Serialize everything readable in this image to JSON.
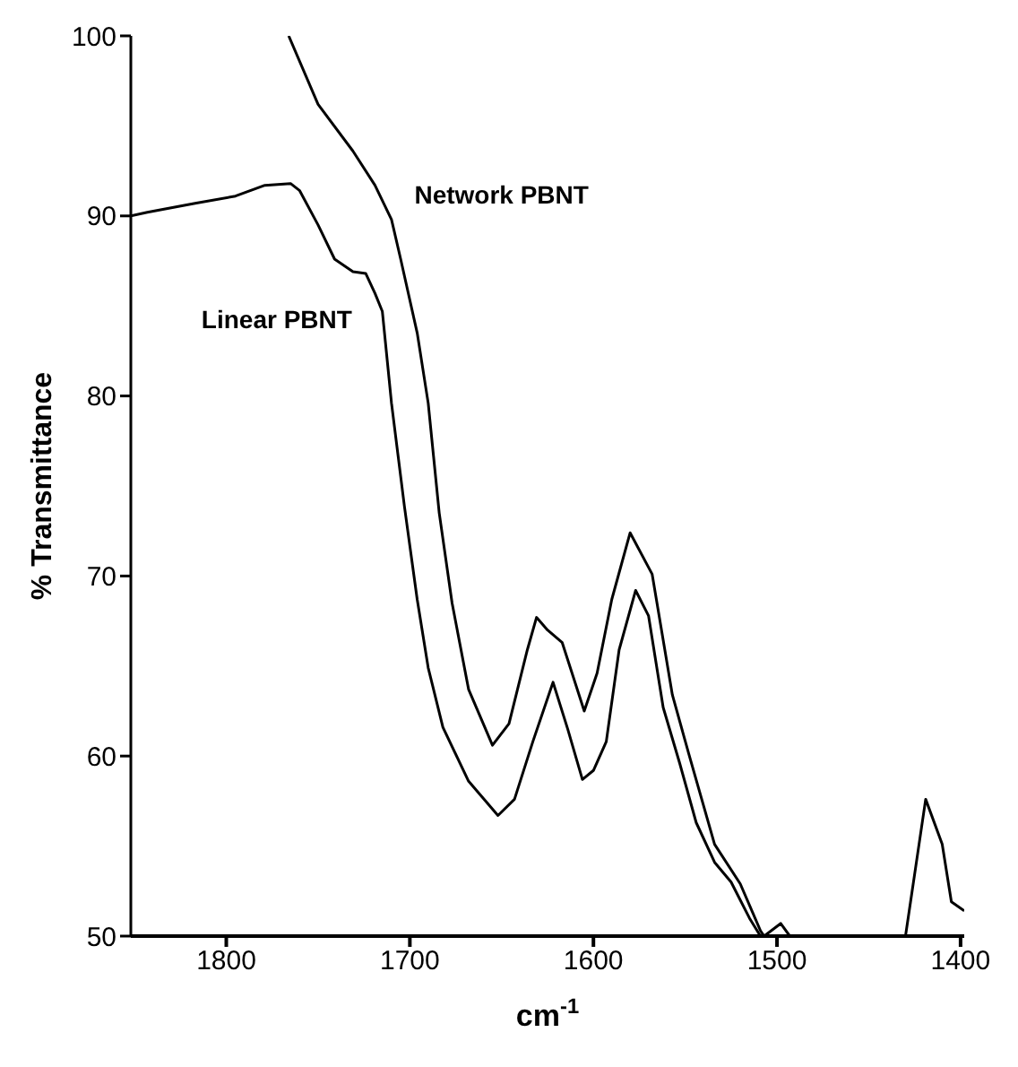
{
  "chart_data": {
    "type": "line",
    "xlabel": "cm$^{-1}$",
    "ylabel": "% Transmittance",
    "xlim": [
      1852,
      1398
    ],
    "xticks": [
      1800,
      1700,
      1600,
      1500,
      1400
    ],
    "ylim": [
      50,
      100
    ],
    "yticks": [
      50,
      60,
      70,
      80,
      90,
      100
    ],
    "marker": "none",
    "line_style": "solid",
    "series": [
      {
        "name": "Network PBNT",
        "color": "#000000",
        "x": [
          1766,
          1750,
          1731,
          1719,
          1710,
          1705,
          1696,
          1690,
          1684,
          1677,
          1668,
          1655,
          1646,
          1636,
          1631,
          1625,
          1617,
          1605,
          1598,
          1590,
          1580,
          1568,
          1557,
          1548,
          1534,
          1520,
          1509,
          1507,
          1498,
          1493,
          1430,
          1419,
          1410,
          1405,
          1398
        ],
        "values": [
          100,
          96.2,
          93.6,
          91.7,
          89.8,
          87.6,
          83.5,
          79.6,
          73.5,
          68.5,
          63.7,
          60.6,
          61.8,
          65.9,
          67.7,
          67,
          66.3,
          62.5,
          64.6,
          68.7,
          72.4,
          70.1,
          63.4,
          60.1,
          55.1,
          52.9,
          50.3,
          50,
          50.7,
          50,
          50,
          57.6,
          55.1,
          51.9,
          51.4
        ]
      },
      {
        "name": "Linear PBNT",
        "color": "#000000",
        "x": [
          1852,
          1843,
          1817,
          1795,
          1779,
          1765,
          1760,
          1750,
          1741,
          1731,
          1724,
          1719,
          1715,
          1710,
          1703,
          1696,
          1690,
          1682,
          1668,
          1652,
          1643,
          1633,
          1622,
          1614,
          1606,
          1600,
          1593,
          1586,
          1577,
          1570,
          1562,
          1553,
          1544,
          1534,
          1525,
          1515,
          1509
        ],
        "values": [
          90,
          90.2,
          90.7,
          91.1,
          91.7,
          91.8,
          91.4,
          89.5,
          87.6,
          86.9,
          86.8,
          85.7,
          84.7,
          79.6,
          73.9,
          68.7,
          64.9,
          61.6,
          58.6,
          56.7,
          57.6,
          60.8,
          64.1,
          61.5,
          58.7,
          59.2,
          60.8,
          65.9,
          69.2,
          67.8,
          62.7,
          59.6,
          56.3,
          54.1,
          53,
          51,
          50
        ]
      }
    ]
  }
}
